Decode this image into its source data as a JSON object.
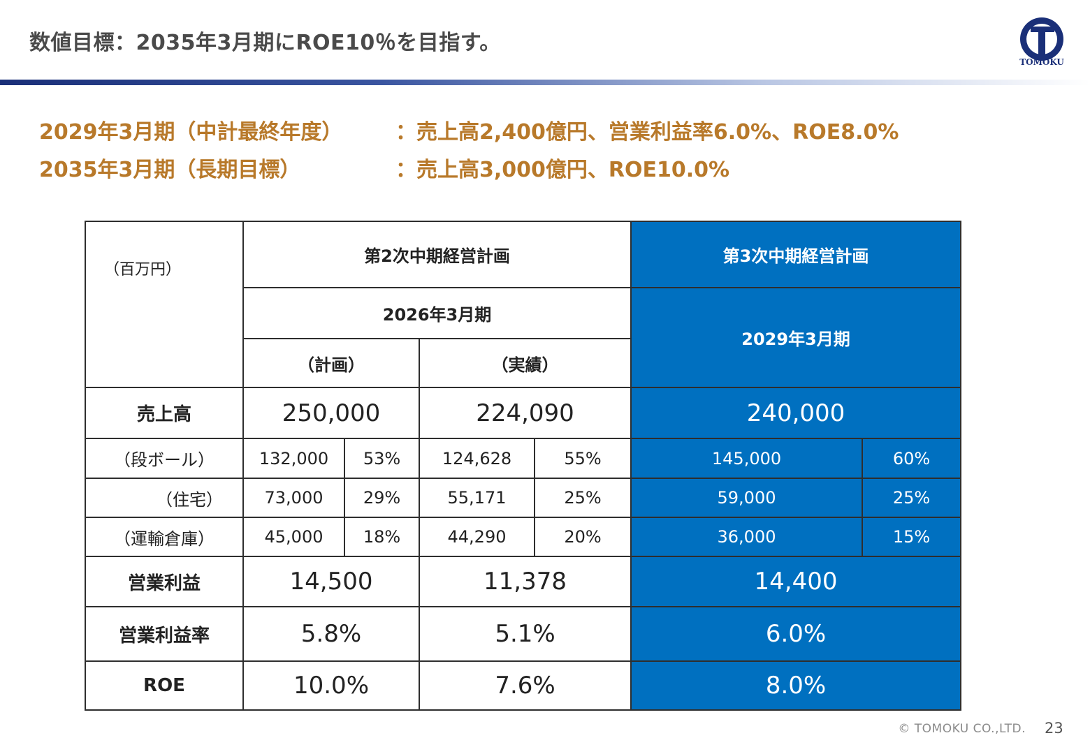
{
  "header": {
    "title": "数値目標：2035年3月期にROE10％を目指す。",
    "logo_text": "TOMOKU"
  },
  "targets": [
    {
      "period": "2029年3月期（中計最終年度）",
      "value": "：売上高2,400億円、営業利益率6.0%、ROE8.0%"
    },
    {
      "period": "2035年3月期（長期目標）",
      "value": "：売上高3,000億円、ROE10.0%"
    }
  ],
  "table": {
    "unit": "（百万円）",
    "plan2_title": "第2次中期経営計画",
    "plan3_title": "第3次中期経営計画",
    "plan2_period": "2026年3月期",
    "plan3_period": "2029年3月期",
    "col_plan": "（計画）",
    "col_actual": "（実績）",
    "rows": {
      "sales": {
        "label": "売上高",
        "plan": "250,000",
        "actual": "224,090",
        "target": "240,000"
      },
      "cardboard": {
        "label": "（段ボール）",
        "plan": "132,000",
        "plan_pct": "53%",
        "actual": "124,628",
        "actual_pct": "55%",
        "target": "145,000",
        "target_pct": "60%"
      },
      "housing": {
        "label": "（住宅）",
        "plan": "73,000",
        "plan_pct": "29%",
        "actual": "55,171",
        "actual_pct": "25%",
        "target": "59,000",
        "target_pct": "25%"
      },
      "logistics": {
        "label": "（運輸倉庫）",
        "plan": "45,000",
        "plan_pct": "18%",
        "actual": "44,290",
        "actual_pct": "20%",
        "target": "36,000",
        "target_pct": "15%"
      },
      "op_income": {
        "label": "営業利益",
        "plan": "14,500",
        "actual": "11,378",
        "target": "14,400"
      },
      "op_margin": {
        "label": "営業利益率",
        "plan": "5.8%",
        "actual": "5.1%",
        "target": "6.0%"
      },
      "roe": {
        "label": "ROE",
        "plan": "10.0%",
        "actual": "7.6%",
        "target": "8.0%"
      }
    }
  },
  "footer": {
    "copyright": "© TOMOKU CO.,LTD.",
    "page": "23"
  },
  "colors": {
    "accent_blue": "#0070c0",
    "target_text": "#b8792a",
    "brand_navy": "#1a2f78"
  }
}
